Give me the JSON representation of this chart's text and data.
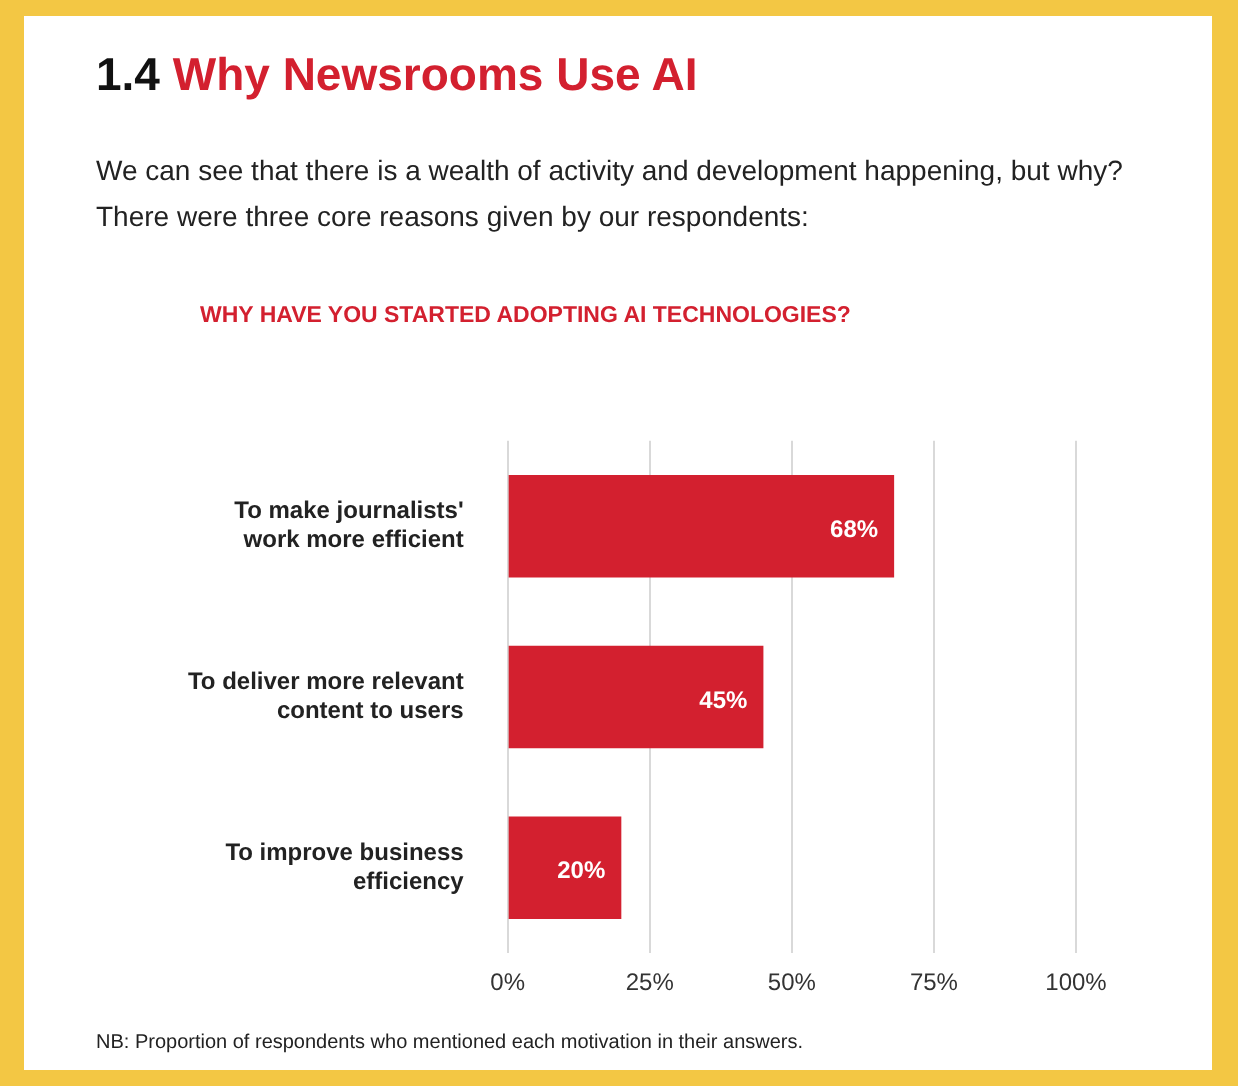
{
  "chart_data": {
    "type": "bar",
    "orientation": "horizontal",
    "title": "1.4 Why Newsrooms Use AI",
    "subtitle": "We can see that there is a wealth of activity and development happening, but why? There were three core reasons given by our respondents:",
    "annotations": [
      "WHY HAVE YOU STARTED ADOPTING AI TECHNOLOGIES?",
      "NB: Proportion of respondents who mentioned each motivation in their answers."
    ],
    "categories": [
      "To make journalists' work more efficient",
      "To deliver more relevant content to users",
      "To improve business efficiency"
    ],
    "values": [
      68,
      45,
      20
    ],
    "color": "#d3202f",
    "value_labels": [
      "68%",
      "45%",
      "20%"
    ],
    "xlim": [
      0,
      100
    ],
    "xticks": [
      {
        "value": 0,
        "label": "0%"
      },
      {
        "value": 25,
        "label": "25%"
      },
      {
        "value": 50,
        "label": "50%"
      },
      {
        "value": 75,
        "label": "75%"
      },
      {
        "value": 100,
        "label": "100%"
      }
    ],
    "grid": "x"
  }
}
